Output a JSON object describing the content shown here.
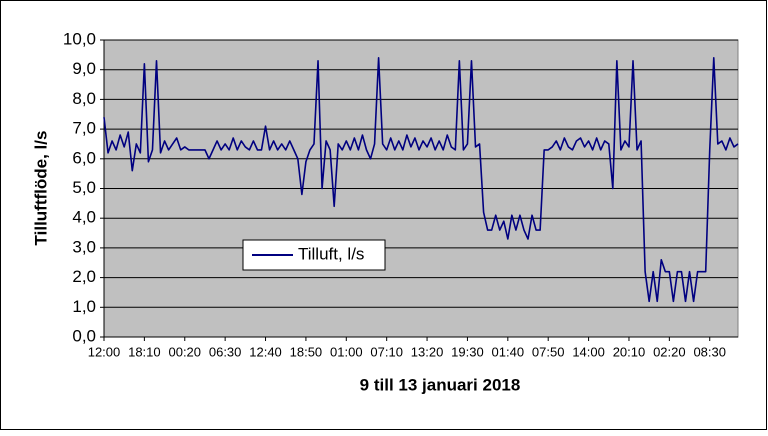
{
  "chart_data": {
    "type": "line",
    "x_label": "9 till 13 januari 2018",
    "y_label": "Tilluftflöde, l/s",
    "categories": [
      "12:00",
      null,
      null,
      null,
      null,
      null,
      null,
      null,
      null,
      null,
      "18:10",
      null,
      null,
      null,
      null,
      null,
      null,
      null,
      null,
      null,
      "00:20",
      null,
      null,
      null,
      null,
      null,
      null,
      null,
      null,
      null,
      "06:30",
      null,
      null,
      null,
      null,
      null,
      null,
      null,
      null,
      null,
      "12:40",
      null,
      null,
      null,
      null,
      null,
      null,
      null,
      null,
      null,
      "18:50",
      null,
      null,
      null,
      null,
      null,
      null,
      null,
      null,
      null,
      "01:00",
      null,
      null,
      null,
      null,
      null,
      null,
      null,
      null,
      null,
      "07:10",
      null,
      null,
      null,
      null,
      null,
      null,
      null,
      null,
      null,
      "13:20",
      null,
      null,
      null,
      null,
      null,
      null,
      null,
      null,
      null,
      "19:30",
      null,
      null,
      null,
      null,
      null,
      null,
      null,
      null,
      null,
      "01:40",
      null,
      null,
      null,
      null,
      null,
      null,
      null,
      null,
      null,
      "07:50",
      null,
      null,
      null,
      null,
      null,
      null,
      null,
      null,
      null,
      "14:00",
      null,
      null,
      null,
      null,
      null,
      null,
      null,
      null,
      null,
      "20:10",
      null,
      null,
      null,
      null,
      null,
      null,
      null,
      null,
      null,
      "02:20",
      null,
      null,
      null,
      null,
      null,
      null,
      null,
      null,
      null,
      "08:30",
      null,
      null,
      null,
      null,
      null,
      null,
      null
    ],
    "series": [
      {
        "name": "Tilluft, l/s",
        "color": "#000080",
        "values": [
          7.4,
          6.2,
          6.6,
          6.3,
          6.8,
          6.4,
          6.9,
          5.6,
          6.5,
          6.2,
          9.2,
          5.9,
          6.3,
          9.3,
          6.2,
          6.6,
          6.3,
          6.5,
          6.7,
          6.3,
          6.4,
          6.3,
          6.3,
          6.3,
          6.3,
          6.3,
          6.0,
          6.3,
          6.6,
          6.3,
          6.5,
          6.3,
          6.7,
          6.3,
          6.6,
          6.4,
          6.3,
          6.6,
          6.3,
          6.3,
          7.1,
          6.3,
          6.6,
          6.3,
          6.5,
          6.3,
          6.6,
          6.3,
          6.0,
          4.8,
          5.9,
          6.3,
          6.5,
          9.3,
          5.0,
          6.6,
          6.3,
          4.4,
          6.5,
          6.3,
          6.6,
          6.3,
          6.7,
          6.3,
          6.8,
          6.3,
          6.0,
          6.5,
          9.4,
          6.5,
          6.3,
          6.7,
          6.3,
          6.6,
          6.3,
          6.8,
          6.4,
          6.7,
          6.3,
          6.6,
          6.4,
          6.7,
          6.3,
          6.6,
          6.3,
          6.8,
          6.4,
          6.3,
          9.3,
          6.3,
          6.5,
          9.3,
          6.4,
          6.5,
          4.2,
          3.6,
          3.6,
          4.1,
          3.6,
          3.9,
          3.3,
          4.1,
          3.6,
          4.1,
          3.6,
          3.3,
          4.1,
          3.6,
          3.6,
          6.3,
          6.3,
          6.4,
          6.6,
          6.3,
          6.7,
          6.4,
          6.3,
          6.6,
          6.7,
          6.4,
          6.6,
          6.3,
          6.7,
          6.3,
          6.6,
          6.5,
          5.0,
          9.3,
          6.3,
          6.6,
          6.4,
          9.3,
          6.3,
          6.6,
          2.2,
          1.2,
          2.2,
          1.2,
          2.6,
          2.2,
          2.2,
          1.2,
          2.2,
          2.2,
          1.2,
          2.2,
          1.2,
          2.2,
          2.2,
          2.2,
          6.3,
          9.4,
          6.5,
          6.6,
          6.3,
          6.7,
          6.4,
          6.5
        ]
      }
    ],
    "ylim": [
      0,
      10
    ],
    "yticks": [
      {
        "value": 0,
        "label": "0,0"
      },
      {
        "value": 1,
        "label": "1,0"
      },
      {
        "value": 2,
        "label": "2,0"
      },
      {
        "value": 3,
        "label": "3,0"
      },
      {
        "value": 4,
        "label": "4,0"
      },
      {
        "value": 5,
        "label": "5,0"
      },
      {
        "value": 6,
        "label": "6,0"
      },
      {
        "value": 7,
        "label": "7,0"
      },
      {
        "value": 8,
        "label": "8,0"
      },
      {
        "value": 9,
        "label": "9,0"
      },
      {
        "value": 10,
        "label": "10,0"
      }
    ],
    "grid": true,
    "plot_background": "#c0c0c0"
  }
}
